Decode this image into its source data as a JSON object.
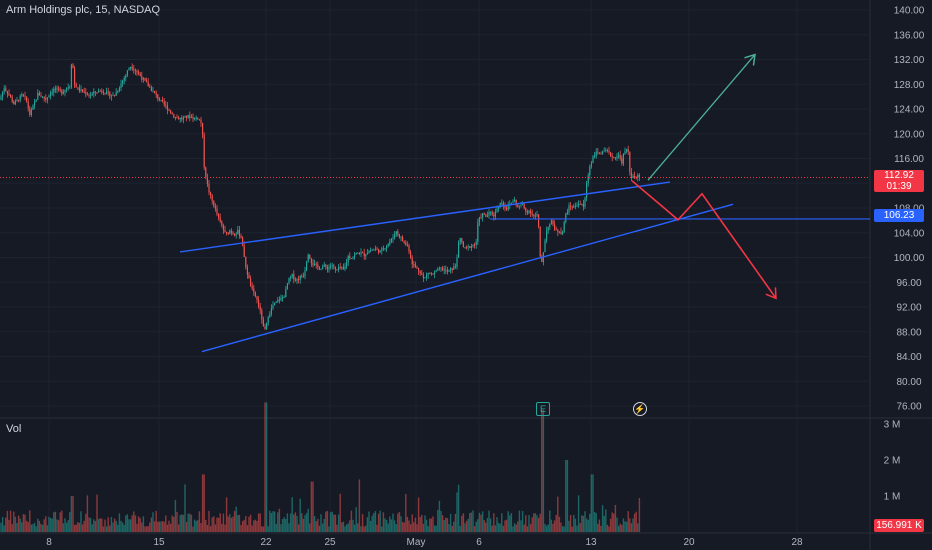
{
  "header": {
    "title": "Arm Holdings plc, 15, NASDAQ"
  },
  "volume_pane": {
    "title": "Vol"
  },
  "price_badges": {
    "last_price": "112.92",
    "countdown": "01:39",
    "level": "106.23",
    "volume_value": "156.991 K"
  },
  "event_markers": {
    "earnings": "E",
    "dividend": "⚡"
  },
  "colors": {
    "background": "#161a25",
    "up": "#26a69a",
    "down": "#ef5350",
    "trendline": "#2962ff",
    "level_line": "#2962ff",
    "up_arrow": "#4caf9a",
    "down_arrow": "#f23645",
    "text": "#b2b5be"
  },
  "chart_data": {
    "type": "candlestick",
    "symbol": "Arm Holdings plc",
    "interval": "15",
    "exchange": "NASDAQ",
    "y_ticks": [
      140,
      136,
      132,
      128,
      124,
      120,
      116,
      112,
      108,
      104,
      100,
      96,
      92,
      88,
      84,
      80,
      76
    ],
    "y_tick_labels": [
      "140.00",
      "136.00",
      "132.00",
      "128.00",
      "124.00",
      "120.00",
      "116.00",
      "112.00",
      "108.00",
      "104.00",
      "100.00",
      "96.00",
      "92.00",
      "88.00",
      "84.00",
      "80.00",
      "76.00"
    ],
    "ylim": [
      74,
      141.5
    ],
    "x_ticks": [
      "8",
      "15",
      "22",
      "25",
      "May",
      "6",
      "13",
      "20",
      "28"
    ],
    "volume_ticks": [
      1000000,
      2000000,
      3000000
    ],
    "volume_tick_labels": [
      "1 M",
      "2 M",
      "3 M"
    ],
    "price_path": [
      [
        0,
        125.5
      ],
      [
        4,
        127.5
      ],
      [
        7,
        126.8
      ],
      [
        10,
        126
      ],
      [
        14,
        124.8
      ],
      [
        18,
        125.5
      ],
      [
        22,
        126.2
      ],
      [
        26,
        125.6
      ],
      [
        30,
        123
      ],
      [
        34,
        124.8
      ],
      [
        38,
        126.5
      ],
      [
        42,
        126
      ],
      [
        46,
        125.6
      ],
      [
        50,
        126.6
      ],
      [
        54,
        127.2
      ],
      [
        58,
        127
      ],
      [
        62,
        126.7
      ],
      [
        66,
        127.4
      ],
      [
        70,
        127.8
      ],
      [
        72,
        133
      ],
      [
        74,
        128.2
      ],
      [
        78,
        127.2
      ],
      [
        84,
        126.7
      ],
      [
        90,
        126.2
      ],
      [
        96,
        126.8
      ],
      [
        102,
        127
      ],
      [
        108,
        126.4
      ],
      [
        114,
        126.1
      ],
      [
        118,
        127.2
      ],
      [
        122,
        128.4
      ],
      [
        126,
        129.6
      ],
      [
        130,
        131
      ],
      [
        134,
        130.5
      ],
      [
        138,
        129.8
      ],
      [
        142,
        129
      ],
      [
        146,
        128.2
      ],
      [
        150,
        127.4
      ],
      [
        154,
        126.6
      ],
      [
        158,
        125.8
      ],
      [
        162,
        125
      ],
      [
        166,
        124.4
      ],
      [
        170,
        123.6
      ],
      [
        174,
        122.8
      ],
      [
        178,
        122.5
      ],
      [
        182,
        122.4
      ],
      [
        186,
        122.7
      ],
      [
        190,
        122.8
      ],
      [
        194,
        122.5
      ],
      [
        198,
        122.6
      ],
      [
        202,
        121.5
      ],
      [
        204,
        115
      ],
      [
        207,
        112
      ],
      [
        210,
        110
      ],
      [
        214,
        108.4
      ],
      [
        218,
        106.5
      ],
      [
        222,
        105
      ],
      [
        226,
        103.6
      ],
      [
        230,
        104.4
      ],
      [
        234,
        103.8
      ],
      [
        238,
        104.2
      ],
      [
        242,
        103
      ],
      [
        244,
        100
      ],
      [
        246,
        98.4
      ],
      [
        248,
        97
      ],
      [
        250,
        95.8
      ],
      [
        253,
        94.3
      ],
      [
        256,
        93.6
      ],
      [
        259,
        92
      ],
      [
        262,
        90
      ],
      [
        264,
        88
      ],
      [
        266,
        88.6
      ],
      [
        268,
        90.6
      ],
      [
        270,
        91.2
      ],
      [
        273,
        92.2
      ],
      [
        276,
        92.7
      ],
      [
        279,
        93.2
      ],
      [
        282,
        93.4
      ],
      [
        285,
        94
      ],
      [
        288,
        96.2
      ],
      [
        292,
        97.1
      ],
      [
        296,
        96.3
      ],
      [
        300,
        96.8
      ],
      [
        304,
        97.2
      ],
      [
        308,
        100.8
      ],
      [
        312,
        99.1
      ],
      [
        316,
        98.6
      ],
      [
        320,
        98.3
      ],
      [
        324,
        98.6
      ],
      [
        328,
        98.3
      ],
      [
        332,
        98.8
      ],
      [
        336,
        97.8
      ],
      [
        340,
        98.4
      ],
      [
        344,
        97.9
      ],
      [
        348,
        100.2
      ],
      [
        352,
        100
      ],
      [
        356,
        100.6
      ],
      [
        360,
        100.8
      ],
      [
        364,
        100.4
      ],
      [
        368,
        101
      ],
      [
        372,
        101.2
      ],
      [
        376,
        101.4
      ],
      [
        380,
        100.9
      ],
      [
        384,
        101.6
      ],
      [
        388,
        102.2
      ],
      [
        392,
        103
      ],
      [
        396,
        104.2
      ],
      [
        400,
        103.4
      ],
      [
        404,
        102.4
      ],
      [
        408,
        101.8
      ],
      [
        412,
        99.2
      ],
      [
        416,
        98.3
      ],
      [
        420,
        97.8
      ],
      [
        424,
        96.4
      ],
      [
        428,
        97.6
      ],
      [
        432,
        97.2
      ],
      [
        436,
        97.7
      ],
      [
        440,
        98.2
      ],
      [
        444,
        98
      ],
      [
        448,
        97.6
      ],
      [
        452,
        98.2
      ],
      [
        456,
        98.6
      ],
      [
        458,
        101.8
      ],
      [
        460,
        103
      ],
      [
        462,
        102.4
      ],
      [
        464,
        101.4
      ],
      [
        468,
        101.6
      ],
      [
        472,
        102
      ],
      [
        476,
        102.2
      ],
      [
        478,
        105.8
      ],
      [
        482,
        107
      ],
      [
        486,
        106.6
      ],
      [
        490,
        107.3
      ],
      [
        494,
        106.8
      ],
      [
        498,
        108.4
      ],
      [
        502,
        109
      ],
      [
        506,
        107.8
      ],
      [
        510,
        108.6
      ],
      [
        514,
        109.4
      ],
      [
        518,
        108.1
      ],
      [
        522,
        108.6
      ],
      [
        526,
        107.4
      ],
      [
        530,
        107.6
      ],
      [
        534,
        106.6
      ],
      [
        538,
        106.9
      ],
      [
        540,
        100
      ],
      [
        542,
        99.2
      ],
      [
        544,
        101.8
      ],
      [
        546,
        104
      ],
      [
        548,
        105.1
      ],
      [
        552,
        105.8
      ],
      [
        556,
        104.2
      ],
      [
        560,
        104.4
      ],
      [
        562,
        103.6
      ],
      [
        566,
        107.2
      ],
      [
        570,
        108.4
      ],
      [
        574,
        108.1
      ],
      [
        578,
        108.8
      ],
      [
        582,
        108.6
      ],
      [
        584,
        107.8
      ],
      [
        586,
        111.4
      ],
      [
        590,
        115
      ],
      [
        594,
        116.6
      ],
      [
        598,
        117
      ],
      [
        602,
        116.8
      ],
      [
        606,
        117.2
      ],
      [
        610,
        116.6
      ],
      [
        614,
        116.1
      ],
      [
        618,
        116.6
      ],
      [
        622,
        115.4
      ],
      [
        624,
        117
      ],
      [
        628,
        117.4
      ],
      [
        630,
        113.6
      ],
      [
        632,
        112.9
      ],
      [
        634,
        113
      ],
      [
        636,
        112.7
      ],
      [
        638,
        113.1
      ],
      [
        640,
        112.92
      ]
    ],
    "volume_bars_note": "per-bar volume estimated visually",
    "drawings": {
      "channel_upper": [
        [
          180,
          100.9
        ],
        [
          670,
          112.2
        ]
      ],
      "channel_lower": [
        [
          202,
          84.8
        ],
        [
          733,
          108.6
        ]
      ],
      "horizontal_level": 106.23,
      "level_start_x": 490,
      "projection_up": [
        [
          648,
          112.5
        ],
        [
          755,
          132.8
        ]
      ],
      "projection_down": [
        [
          632,
          112.4
        ],
        [
          678,
          106.1
        ],
        [
          702,
          110.3
        ],
        [
          776,
          93.4
        ]
      ]
    }
  }
}
